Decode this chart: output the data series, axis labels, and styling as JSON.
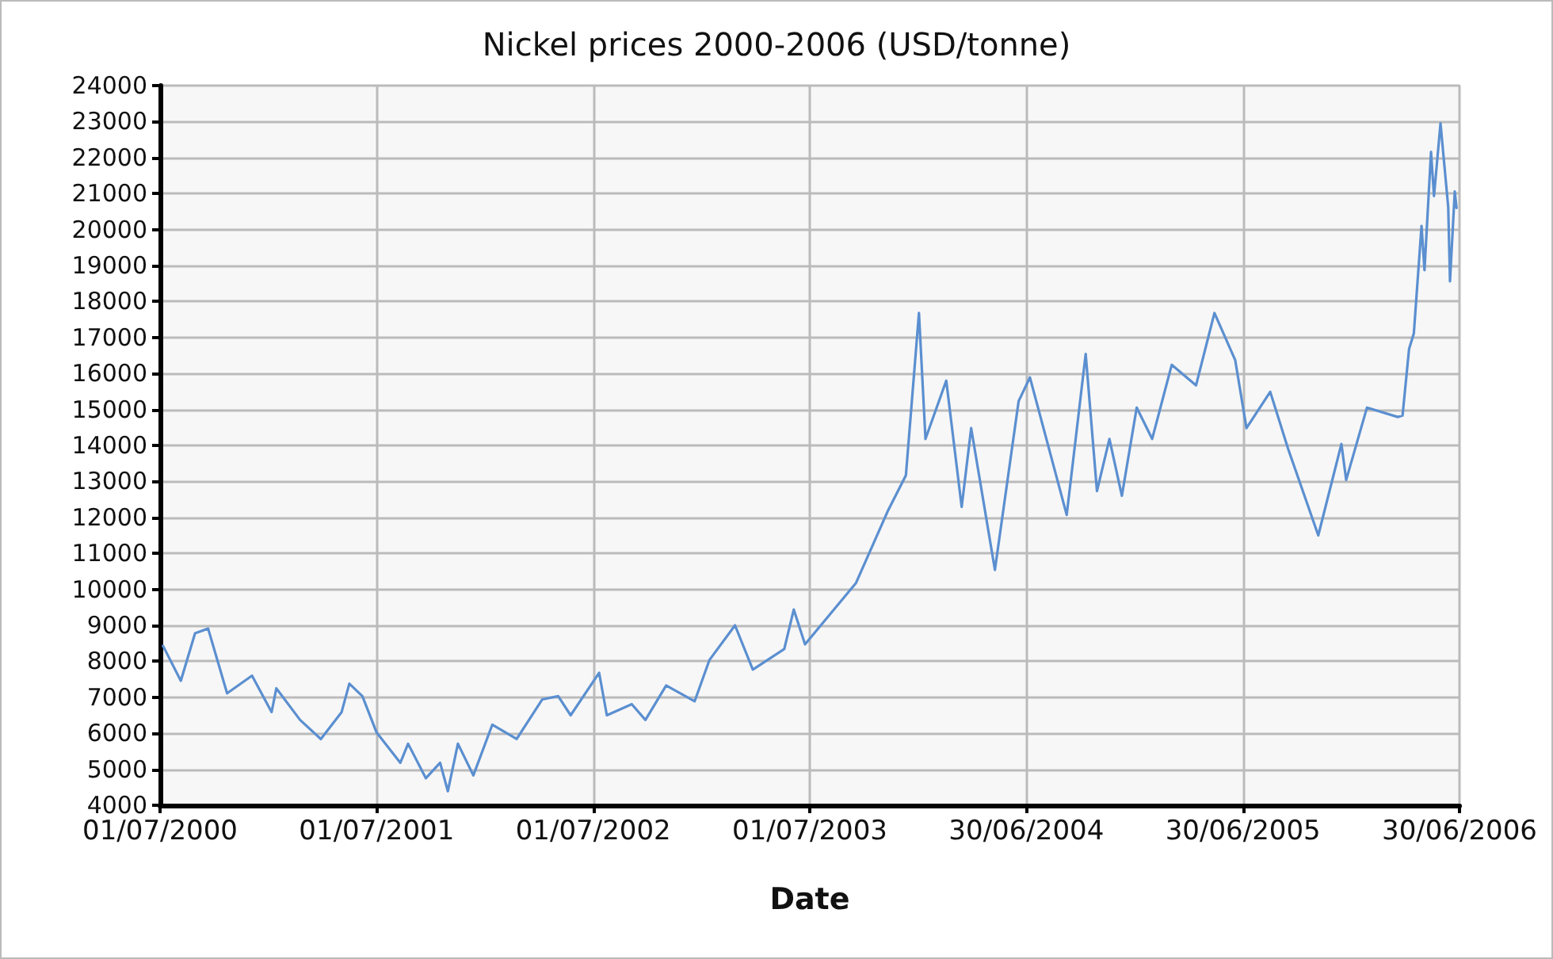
{
  "chart_data": {
    "type": "line",
    "title": "Nickel prices 2000-2006 (USD/tonne)",
    "xlabel": "Date",
    "x": [
      "2000-07-06",
      "2000-08-05",
      "2000-08-29",
      "2000-09-20",
      "2000-10-22",
      "2000-12-03",
      "2001-01-05",
      "2001-01-13",
      "2001-02-22",
      "2001-03-29",
      "2001-05-03",
      "2001-05-16",
      "2001-06-07",
      "2001-07-01",
      "2001-08-10",
      "2001-08-23",
      "2001-09-22",
      "2001-10-16",
      "2001-10-29",
      "2001-11-15",
      "2001-12-11",
      "2002-01-12",
      "2002-02-22",
      "2002-04-06",
      "2002-05-03",
      "2002-05-24",
      "2002-07-11",
      "2002-07-24",
      "2002-09-04",
      "2002-09-27",
      "2002-11-01",
      "2002-12-19",
      "2003-01-13",
      "2003-02-25",
      "2003-03-27",
      "2003-05-19",
      "2003-06-04",
      "2003-06-23",
      "2003-09-17",
      "2003-11-09",
      "2003-12-10",
      "2004-01-01",
      "2004-01-12",
      "2004-02-16",
      "2004-03-13",
      "2004-03-29",
      "2004-05-08",
      "2004-06-17",
      "2004-07-06",
      "2004-09-06",
      "2004-10-08",
      "2004-10-27",
      "2004-11-17",
      "2004-12-08",
      "2005-01-02",
      "2005-01-28",
      "2005-03-02",
      "2005-04-12",
      "2005-05-13",
      "2005-06-17",
      "2005-07-06",
      "2005-08-15",
      "2005-09-14",
      "2005-11-04",
      "2005-12-13",
      "2005-12-21",
      "2006-01-25",
      "2006-03-18",
      "2006-03-26",
      "2006-04-06",
      "2006-04-14",
      "2006-04-27",
      "2006-05-02",
      "2006-05-13",
      "2006-05-18",
      "2006-05-29",
      "2006-06-11",
      "2006-06-14",
      "2006-06-22",
      "2006-06-25"
    ],
    "series": [
      {
        "color": "#5b8fd0",
        "values": [
          8430,
          7460,
          8780,
          8910,
          7110,
          7600,
          6590,
          7250,
          6370,
          5840,
          6590,
          7380,
          7030,
          6020,
          5180,
          5710,
          4750,
          5180,
          4390,
          5710,
          4830,
          6240,
          5840,
          6940,
          7030,
          6500,
          7680,
          6500,
          6810,
          6370,
          7330,
          6890,
          8040,
          9000,
          7770,
          8340,
          9440,
          8470,
          10180,
          12160,
          13170,
          17680,
          14180,
          15800,
          12290,
          14480,
          10540,
          15230,
          15890,
          12070,
          16540,
          12730,
          14180,
          12600,
          15050,
          14180,
          16240,
          15670,
          17680,
          16370,
          14480,
          15490,
          13910,
          11500,
          14040,
          13040,
          15050,
          14790,
          14830,
          16680,
          17110,
          20100,
          18870,
          22160,
          20930,
          22950,
          20620,
          18560,
          21060,
          20600
        ]
      }
    ],
    "xlim": [
      "2000-07-01",
      "2006-06-30"
    ],
    "xticks": [
      {
        "value": "2000-07-01",
        "label": "01/07/2000"
      },
      {
        "value": "2001-07-01",
        "label": "01/07/2001"
      },
      {
        "value": "2002-07-01",
        "label": "01/07/2002"
      },
      {
        "value": "2003-07-01",
        "label": "01/07/2003"
      },
      {
        "value": "2004-06-30",
        "label": "30/06/2004"
      },
      {
        "value": "2005-06-30",
        "label": "30/06/2005"
      },
      {
        "value": "2006-06-30",
        "label": "30/06/2006"
      }
    ],
    "ylim": [
      4000,
      24000
    ],
    "yticks": [
      4000,
      5000,
      6000,
      7000,
      8000,
      9000,
      10000,
      11000,
      12000,
      13000,
      14000,
      15000,
      16000,
      17000,
      18000,
      19000,
      20000,
      21000,
      22000,
      23000,
      24000
    ],
    "grid": true,
    "marker": "none",
    "line_style": "solid"
  }
}
